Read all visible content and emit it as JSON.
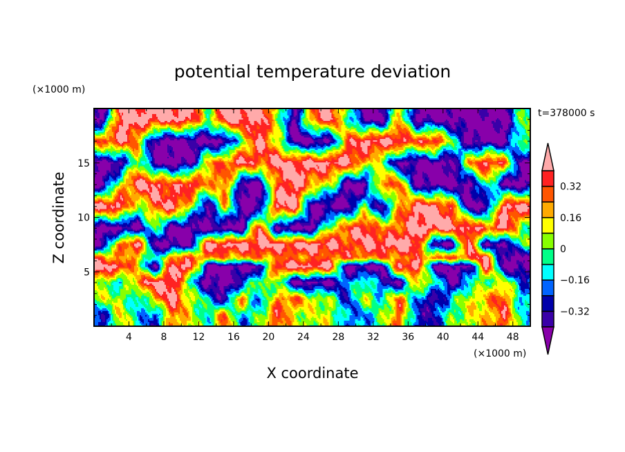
{
  "chart_data": {
    "type": "heatmap",
    "subtype": "filled-contour",
    "title": "potential temperature deviation",
    "xlabel": "X coordinate",
    "ylabel": "Z coordinate",
    "x_unit": "(×1000 m)",
    "y_unit": "(×1000 m)",
    "time_label": "t=378000 s",
    "xlim": [
      0,
      50
    ],
    "ylim": [
      0,
      20
    ],
    "x_ticks": [
      4,
      8,
      12,
      16,
      20,
      24,
      28,
      32,
      36,
      40,
      44,
      48
    ],
    "y_ticks": [
      5,
      10,
      15
    ],
    "colorbar": {
      "levels": [
        -0.4,
        -0.32,
        -0.24,
        -0.16,
        -0.08,
        0,
        0.08,
        0.16,
        0.24,
        0.32,
        0.4
      ],
      "tick_labels": [
        "0.32",
        "0.16",
        "0",
        "−0.16",
        "−0.32"
      ],
      "tick_values": [
        0.32,
        0.16,
        0,
        -0.16,
        -0.32
      ],
      "extend": "both",
      "colors_low_to_high": [
        "#8800aa",
        "#3a00a8",
        "#0000aa",
        "#0064ff",
        "#00ffff",
        "#00ff88",
        "#88ff00",
        "#ffff00",
        "#ffaa00",
        "#ff5500",
        "#ff2222",
        "#ffaaaa"
      ]
    },
    "grid_x": [
      1,
      3,
      5,
      7,
      9,
      11,
      13,
      15,
      17,
      19,
      21,
      23,
      25,
      27,
      29,
      31,
      33,
      35,
      37,
      39,
      41,
      43,
      45,
      47,
      49
    ],
    "grid_z": [
      19,
      17,
      15,
      13,
      11,
      9,
      7.5,
      6.3,
      5.5,
      4,
      2.5,
      1
    ],
    "values": [
      [
        -0.45,
        0.45,
        0.45,
        0.45,
        0.45,
        0.45,
        0,
        0.45,
        0.45,
        0.45,
        0.1,
        -0.45,
        0.3,
        0.45,
        0,
        -0.45,
        -0.45,
        0.2,
        -0.45,
        -0.45,
        -0.45,
        -0.45,
        -0.45,
        -0.45,
        0
      ],
      [
        0.3,
        0.45,
        0.2,
        -0.45,
        -0.45,
        -0.45,
        -0.45,
        -0.45,
        0,
        0.45,
        0.1,
        -0.45,
        -0.45,
        -0.45,
        0.3,
        0.45,
        0.45,
        0.45,
        0.3,
        0.45,
        0,
        -0.45,
        -0.45,
        -0.45,
        0
      ],
      [
        -0.45,
        -0.45,
        0.1,
        -0.45,
        -0.45,
        -0.45,
        0.2,
        0.3,
        0.45,
        0.3,
        0.45,
        0.45,
        0.45,
        0.45,
        0.45,
        0.2,
        0,
        -0.45,
        -0.45,
        -0.45,
        -0.45,
        0.2,
        0.45,
        0.3,
        -0.45
      ],
      [
        -0.45,
        0.1,
        0.45,
        0.45,
        0.3,
        0.45,
        0.2,
        0.3,
        -0.45,
        -0.45,
        0.3,
        0.45,
        0.2,
        0.1,
        -0.45,
        -0.45,
        0.3,
        0.3,
        -0.45,
        -0.45,
        -0.45,
        -0.45,
        0,
        -0.45,
        -0.45
      ],
      [
        0.45,
        0.45,
        0,
        0.3,
        0.45,
        0.1,
        -0.45,
        0.2,
        -0.45,
        -0.45,
        0.45,
        0.45,
        -0.45,
        -0.45,
        -0.45,
        0,
        -0.45,
        0.2,
        0.45,
        0.45,
        0.3,
        -0.45,
        -0.45,
        0.45,
        0.45
      ],
      [
        -0.45,
        -0.45,
        -0.45,
        0,
        -0.45,
        -0.45,
        -0.45,
        -0.45,
        -0.45,
        0.45,
        -0.45,
        -0.45,
        -0.45,
        0.1,
        0.3,
        0.45,
        0.2,
        0.3,
        0.45,
        0.45,
        0.45,
        0.45,
        0.3,
        0.45,
        0
      ],
      [
        -0.45,
        0.3,
        0.45,
        -0.45,
        -0.45,
        -0.45,
        0.45,
        0.45,
        0.45,
        0.45,
        0.45,
        0.45,
        0.45,
        0.45,
        0.3,
        0.4,
        0.45,
        0.45,
        0.45,
        -0.45,
        -0.45,
        0.45,
        -0.45,
        -0.45,
        0
      ],
      [
        0.3,
        0.15,
        0.2,
        -0.2,
        0.3,
        0.28,
        0.25,
        0.22,
        0.2,
        0.25,
        0.22,
        0.26,
        0.25,
        0.28,
        0.3,
        0.26,
        0.24,
        0.25,
        0.27,
        0.28,
        0.3,
        0.3,
        0.45,
        -0.45,
        -0.45
      ],
      [
        0.45,
        0.45,
        0.1,
        -0.45,
        0.45,
        0.45,
        -0.45,
        -0.45,
        -0.45,
        -0.45,
        0.45,
        0.45,
        0.45,
        0.45,
        -0.45,
        -0.45,
        -0.45,
        0.45,
        0.45,
        -0.45,
        -0.45,
        -0.45,
        0.45,
        -0.45,
        -0.45
      ],
      [
        0.1,
        -0.2,
        0.3,
        0.45,
        0.45,
        -0.1,
        -0.45,
        -0.45,
        -0.3,
        0.1,
        0,
        -0.45,
        -0.45,
        -0.45,
        -0.2,
        0,
        -0.3,
        -0.45,
        0.2,
        0,
        -0.45,
        -0.1,
        0,
        0.1,
        -0.2
      ],
      [
        0.05,
        0.1,
        -0.2,
        0.2,
        0.45,
        0.1,
        -0.1,
        -0.4,
        0.3,
        -0.3,
        0.25,
        0.3,
        0.1,
        0.05,
        -0.3,
        0.1,
        -0.1,
        0.3,
        -0.2,
        -0.4,
        -0.1,
        0.1,
        0.2,
        0.35,
        -0.2
      ],
      [
        -0.3,
        0.15,
        -0.1,
        -0.3,
        0.3,
        0.1,
        -0.1,
        0.3,
        -0.2,
        0,
        0.35,
        0.1,
        0.05,
        0.1,
        -0.2,
        -0.2,
        0,
        0.3,
        -0.3,
        -0.3,
        0,
        0.1,
        0.15,
        0.35,
        -0.1
      ]
    ]
  }
}
